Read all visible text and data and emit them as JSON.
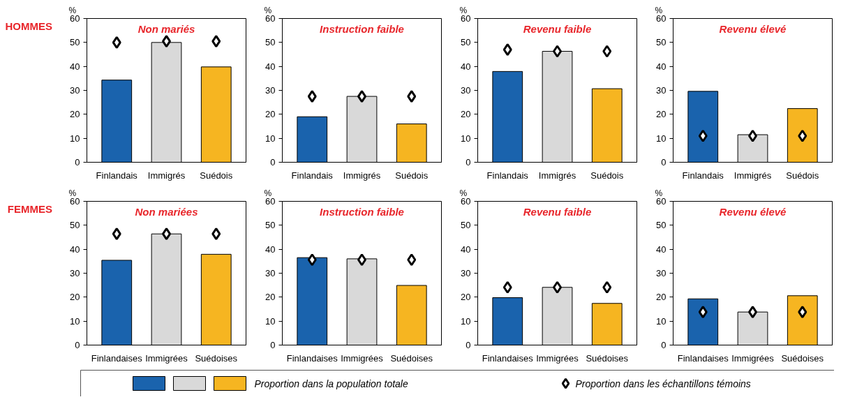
{
  "chart_data": [
    {
      "type": "bar",
      "title": "Non mariés",
      "subtitle": "HOMMES",
      "ylabel": "%",
      "categories": [
        "Finlandais",
        "Immigrés",
        "Suédois"
      ],
      "ylim": [
        0,
        60
      ],
      "yticks": [
        0,
        10,
        20,
        30,
        40,
        50,
        60
      ],
      "grid": false,
      "legend": "bottom",
      "series": [
        {
          "name": "Proportion dans la population totale",
          "colors": [
            "#1a63ad",
            "#d9d9d9",
            "#f6b521"
          ],
          "values": [
            34.3,
            50,
            39.8
          ]
        },
        {
          "name": "Proportion dans les échantillons témoins",
          "type": "scatter",
          "marker": "diamond",
          "color": "#000000",
          "values": [
            50,
            50.5,
            50.5
          ]
        }
      ]
    },
    {
      "type": "bar",
      "title": "Instruction faible",
      "ylabel": "%",
      "categories": [
        "Finlandais",
        "Immigrés",
        "Suédois"
      ],
      "ylim": [
        0,
        60
      ],
      "yticks": [
        0,
        10,
        20,
        30,
        40,
        50,
        60
      ],
      "grid": false,
      "series": [
        {
          "colors": [
            "#1a63ad",
            "#d9d9d9",
            "#f6b521"
          ],
          "values": [
            19,
            27.5,
            16
          ]
        },
        {
          "type": "scatter",
          "marker": "diamond",
          "color": "#000000",
          "values": [
            27.5,
            27.5,
            27.5
          ]
        }
      ]
    },
    {
      "type": "bar",
      "title": "Revenu faible",
      "ylabel": "%",
      "categories": [
        "Finlandais",
        "Immigrés",
        "Suédois"
      ],
      "ylim": [
        0,
        60
      ],
      "yticks": [
        0,
        10,
        20,
        30,
        40,
        50,
        60
      ],
      "grid": false,
      "series": [
        {
          "colors": [
            "#1a63ad",
            "#d9d9d9",
            "#f6b521"
          ],
          "values": [
            37.9,
            46.3,
            30.7
          ]
        },
        {
          "type": "scatter",
          "marker": "diamond",
          "color": "#000000",
          "values": [
            47,
            46.3,
            46.3
          ]
        }
      ]
    },
    {
      "type": "bar",
      "title": "Revenu élevé",
      "ylabel": "%",
      "categories": [
        "Finlandais",
        "Immigrés",
        "Suédois"
      ],
      "ylim": [
        0,
        60
      ],
      "yticks": [
        0,
        10,
        20,
        30,
        40,
        50,
        60
      ],
      "grid": false,
      "series": [
        {
          "colors": [
            "#1a63ad",
            "#d9d9d9",
            "#f6b521"
          ],
          "values": [
            29.6,
            11.5,
            22.4
          ]
        },
        {
          "type": "scatter",
          "marker": "diamond",
          "color": "#000000",
          "values": [
            11,
            11,
            11
          ]
        }
      ]
    },
    {
      "type": "bar",
      "title": "Non mariées",
      "subtitle": "FEMMES",
      "ylabel": "%",
      "categories": [
        "Finlandaises",
        "Immigrées",
        "Suédoises"
      ],
      "ylim": [
        0,
        60
      ],
      "yticks": [
        0,
        10,
        20,
        30,
        40,
        50,
        60
      ],
      "grid": false,
      "series": [
        {
          "colors": [
            "#1a63ad",
            "#d9d9d9",
            "#f6b521"
          ],
          "values": [
            35.4,
            46.4,
            37.9
          ]
        },
        {
          "type": "scatter",
          "marker": "diamond",
          "color": "#000000",
          "values": [
            46.4,
            46.4,
            46.4
          ]
        }
      ]
    },
    {
      "type": "bar",
      "title": "Instruction faible",
      "ylabel": "%",
      "categories": [
        "Finlandaises",
        "Immigrées",
        "Suédoises"
      ],
      "ylim": [
        0,
        60
      ],
      "yticks": [
        0,
        10,
        20,
        30,
        40,
        50,
        60
      ],
      "grid": false,
      "series": [
        {
          "colors": [
            "#1a63ad",
            "#d9d9d9",
            "#f6b521"
          ],
          "values": [
            36.5,
            36,
            24.9
          ]
        },
        {
          "type": "scatter",
          "marker": "diamond",
          "color": "#000000",
          "values": [
            35.6,
            35.6,
            35.6
          ]
        }
      ]
    },
    {
      "type": "bar",
      "title": "Revenu faible",
      "ylabel": "%",
      "categories": [
        "Finlandaises",
        "Immigrées",
        "Suédoises"
      ],
      "ylim": [
        0,
        60
      ],
      "yticks": [
        0,
        10,
        20,
        30,
        40,
        50,
        60
      ],
      "grid": false,
      "series": [
        {
          "colors": [
            "#1a63ad",
            "#d9d9d9",
            "#f6b521"
          ],
          "values": [
            19.8,
            24.1,
            17.4
          ]
        },
        {
          "type": "scatter",
          "marker": "diamond",
          "color": "#000000",
          "values": [
            24.1,
            24.1,
            24.1
          ]
        }
      ]
    },
    {
      "type": "bar",
      "title": "Revenu élevé",
      "ylabel": "%",
      "categories": [
        "Finlandaises",
        "Immigrées",
        "Suédoises"
      ],
      "ylim": [
        0,
        60
      ],
      "yticks": [
        0,
        10,
        20,
        30,
        40,
        50,
        60
      ],
      "grid": false,
      "series": [
        {
          "colors": [
            "#1a63ad",
            "#d9d9d9",
            "#f6b521"
          ],
          "values": [
            19.3,
            13.8,
            20.6
          ]
        },
        {
          "type": "scatter",
          "marker": "diamond",
          "color": "#000000",
          "values": [
            13.8,
            13.8,
            13.8
          ]
        }
      ]
    }
  ]
}
